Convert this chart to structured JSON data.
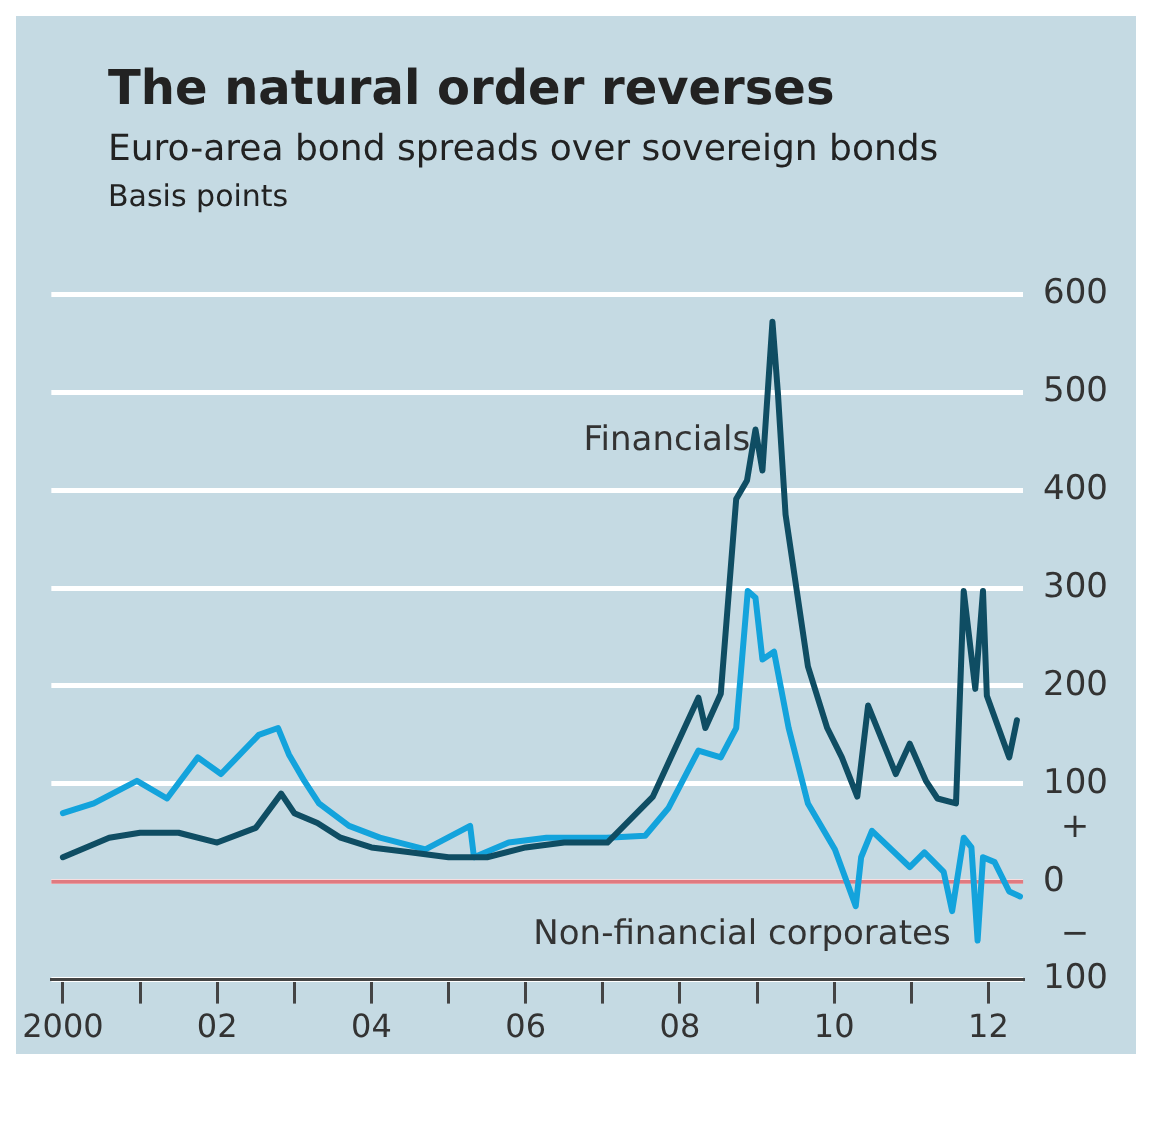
{
  "chart_data": {
    "type": "line",
    "title": "The natural order reverses",
    "subtitle": "Euro-area bond spreads over sovereign bonds",
    "ylabel": "Basis points",
    "series": [
      {
        "name": "Financials",
        "color": "#0f4d63",
        "x": [
          2000.0,
          2000.3,
          2000.6,
          2001.0,
          2001.5,
          2002.0,
          2002.5,
          2002.83,
          2003.0,
          2003.3,
          2003.6,
          2004.0,
          2004.5,
          2005.0,
          2005.5,
          2006.0,
          2006.5,
          2007.06,
          2007.65,
          2008.24,
          2008.33,
          2008.53,
          2008.73,
          2008.87,
          2008.98,
          2009.07,
          2009.2,
          2009.27,
          2009.37,
          2009.66,
          2009.91,
          2010.1,
          2010.3,
          2010.44,
          2010.8,
          2010.98,
          2011.19,
          2011.34,
          2011.58,
          2011.68,
          2011.83,
          2011.93,
          2011.98,
          2012.27,
          2012.37
        ],
        "values": [
          25,
          35,
          45,
          50,
          50,
          40,
          55,
          90,
          70,
          60,
          45,
          35,
          30,
          25,
          25,
          35,
          40,
          40,
          87,
          188,
          157,
          192,
          391,
          410,
          462,
          420,
          572,
          500,
          375,
          220,
          157,
          127,
          87,
          180,
          110,
          141,
          103,
          85,
          80,
          297,
          197,
          297,
          190,
          127,
          165
        ]
      },
      {
        "name": "Non-financial corporates",
        "color": "#13a3dc",
        "x": [
          2000.0,
          2000.4,
          2000.96,
          2001.35,
          2001.75,
          2002.05,
          2002.54,
          2002.79,
          2002.93,
          2003.13,
          2003.32,
          2003.71,
          2004.11,
          2004.7,
          2005.28,
          2005.33,
          2005.78,
          2006.27,
          2007.05,
          2007.55,
          2007.85,
          2008.24,
          2008.53,
          2008.73,
          2008.88,
          2008.98,
          2009.07,
          2009.22,
          2009.41,
          2009.66,
          2010.01,
          2010.28,
          2010.35,
          2010.49,
          2010.98,
          2011.17,
          2011.42,
          2011.53,
          2011.68,
          2011.78,
          2011.86,
          2011.93,
          2012.08,
          2012.27,
          2012.41
        ],
        "values": [
          70,
          80,
          103,
          85,
          127,
          110,
          150,
          157,
          130,
          103,
          80,
          57,
          45,
          33,
          57,
          25,
          40,
          45,
          45,
          47,
          75,
          134,
          127,
          157,
          297,
          290,
          227,
          235,
          157,
          80,
          33,
          -25,
          25,
          52,
          15,
          30,
          10,
          -30,
          45,
          35,
          -60,
          25,
          20,
          -10,
          -15
        ]
      }
    ],
    "xlim": [
      1999.85,
      2012.45
    ],
    "xticks": [
      {
        "value": 2000,
        "label": "2000"
      },
      {
        "value": 2001,
        "label": null
      },
      {
        "value": 2002,
        "label": "02"
      },
      {
        "value": 2003,
        "label": null
      },
      {
        "value": 2004,
        "label": "04"
      },
      {
        "value": 2005,
        "label": null
      },
      {
        "value": 2006,
        "label": "06"
      },
      {
        "value": 2007,
        "label": null
      },
      {
        "value": 2008,
        "label": "08"
      },
      {
        "value": 2009,
        "label": null
      },
      {
        "value": 2010,
        "label": "10"
      },
      {
        "value": 2011,
        "label": null
      },
      {
        "value": 2012,
        "label": "12"
      }
    ],
    "ylim": [
      -100,
      600
    ],
    "yticks": [
      {
        "value": -100,
        "label": "100"
      },
      0,
      100,
      200,
      300,
      400,
      500,
      600
    ],
    "ref_lines": [
      {
        "axis": "y",
        "value": 0,
        "color": "#e07a80"
      }
    ],
    "annotations": [
      "+",
      "−"
    ],
    "grid": "y",
    "legend": false,
    "marker": "none",
    "line_style": "solid"
  }
}
